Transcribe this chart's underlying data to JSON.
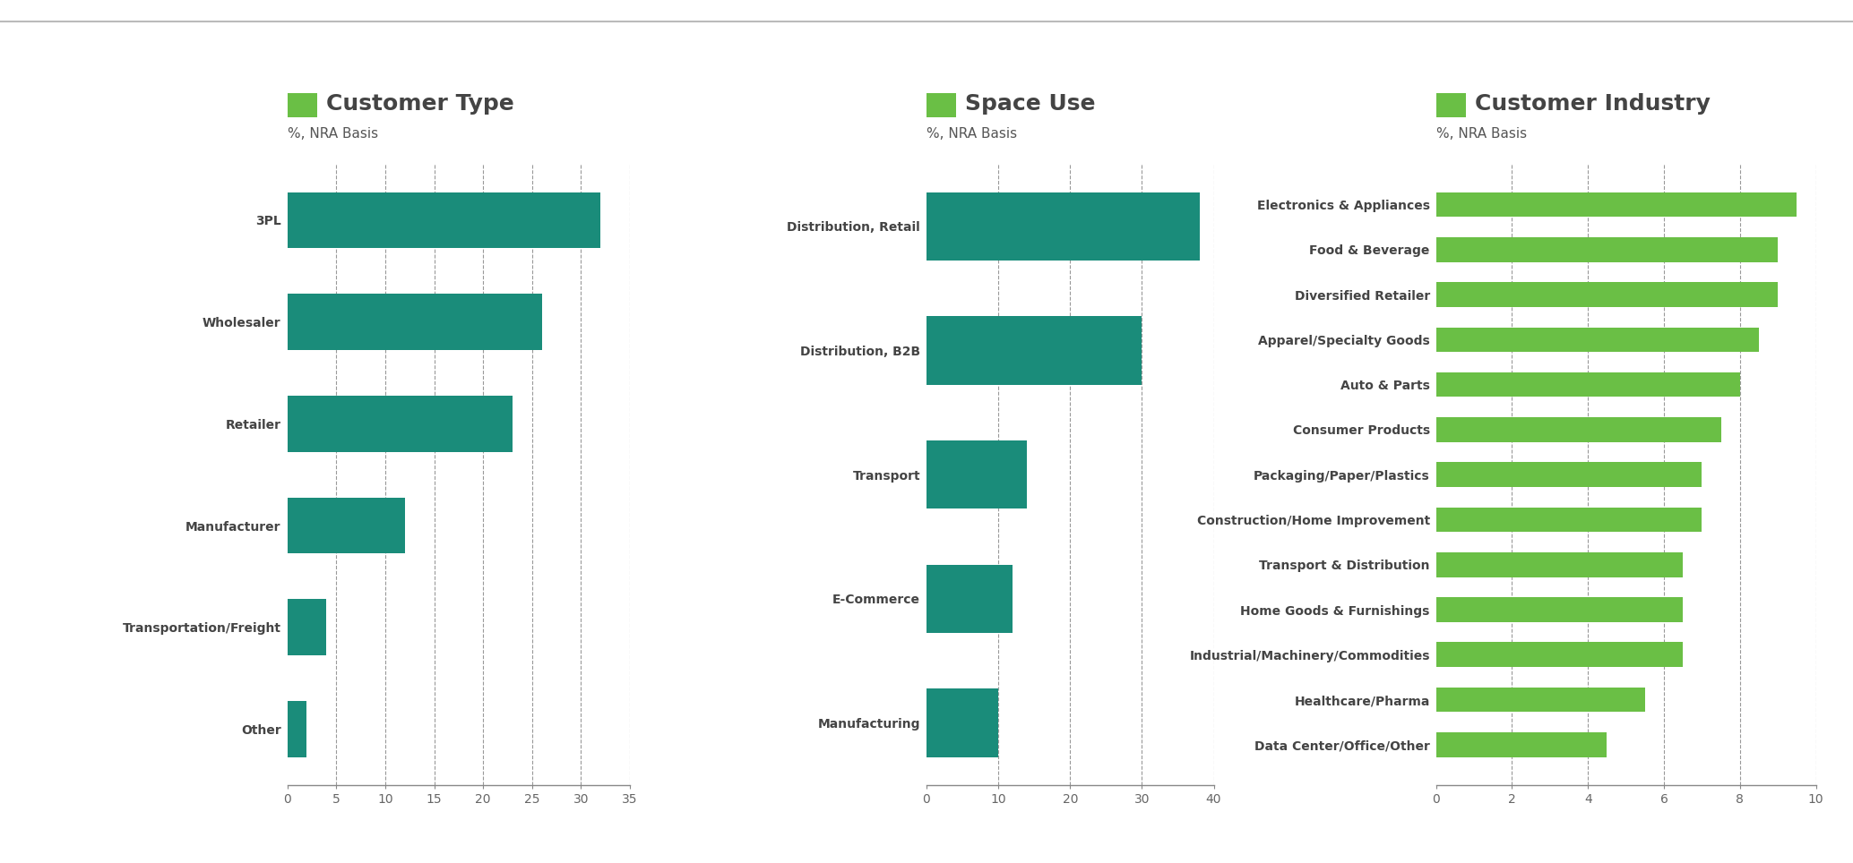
{
  "chart1": {
    "title": "Customer Type",
    "subtitle": "%, NRA Basis",
    "categories": [
      "3PL",
      "Wholesaler",
      "Retailer",
      "Manufacturer",
      "Transportation/Freight",
      "Other"
    ],
    "values": [
      32,
      26,
      23,
      12,
      4,
      2
    ],
    "xlim": [
      0,
      35
    ],
    "xticks": [
      0,
      5,
      10,
      15,
      20,
      25,
      30,
      35
    ],
    "bar_color": "#1a8c7a"
  },
  "chart2": {
    "title": "Space Use",
    "subtitle": "%, NRA Basis",
    "categories": [
      "Distribution, Retail",
      "Distribution, B2B",
      "Transport",
      "E-Commerce",
      "Manufacturing"
    ],
    "values": [
      38,
      30,
      14,
      12,
      10
    ],
    "xlim": [
      0,
      40
    ],
    "xticks": [
      0,
      10,
      20,
      30,
      40
    ],
    "bar_color": "#1a8c7a"
  },
  "chart3": {
    "title": "Customer Industry",
    "subtitle": "%, NRA Basis",
    "categories": [
      "Electronics & Appliances",
      "Food & Beverage",
      "Diversified Retailer",
      "Apparel/Specialty Goods",
      "Auto & Parts",
      "Consumer Products",
      "Packaging/Paper/Plastics",
      "Construction/Home Improvement",
      "Transport & Distribution",
      "Home Goods & Furnishings",
      "Industrial/Machinery/Commodities",
      "Healthcare/Pharma",
      "Data Center/Office/Other"
    ],
    "values": [
      9.5,
      9.0,
      9.0,
      8.5,
      8.0,
      7.5,
      7.0,
      7.0,
      6.5,
      6.5,
      6.5,
      5.5,
      4.5
    ],
    "xlim": [
      0,
      10
    ],
    "xticks": [
      0,
      2,
      4,
      6,
      8,
      10
    ],
    "bar_color": "#6abf45"
  },
  "legend_green_color": "#6abf45",
  "background_color": "#ffffff",
  "title_fontsize": 18,
  "subtitle_fontsize": 11,
  "label_fontsize": 10,
  "tick_fontsize": 10,
  "title_color": "#444444",
  "subtitle_color": "#555555",
  "label_color": "#444444"
}
